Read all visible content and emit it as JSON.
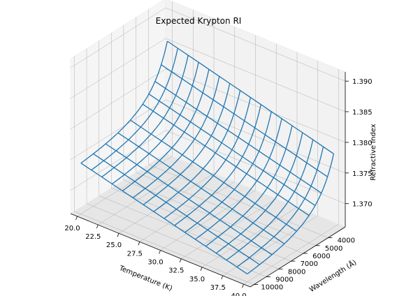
{
  "chart_data": {
    "type": "wireframe-3d",
    "title": "Expected Krypton RI",
    "xlabel": "Temperature (K)",
    "ylabel": "Wavelength (Å)",
    "zlabel": "Refractive Index",
    "x_ticks": [
      "20.0",
      "22.5",
      "25.0",
      "27.5",
      "30.0",
      "32.5",
      "35.0",
      "37.5",
      "40.0"
    ],
    "y_ticks": [
      "4000",
      "5000",
      "6000",
      "7000",
      "8000",
      "9000",
      "10000"
    ],
    "z_ticks": [
      "1.370",
      "1.375",
      "1.380",
      "1.385",
      "1.390"
    ],
    "xlim": [
      19.2,
      40.8
    ],
    "ylim": [
      2600,
      10300
    ],
    "zlim": [
      1.3662,
      1.3915
    ],
    "temperature": [
      20.0,
      21.25,
      22.5,
      23.75,
      25.0,
      26.25,
      27.5,
      28.75,
      30.0,
      31.25,
      32.5,
      33.75,
      35.0,
      36.25,
      37.5,
      38.75,
      40.0
    ],
    "wavelength": [
      3000,
      3500,
      4000,
      4500,
      5000,
      6000,
      7000,
      8000,
      9000,
      10000
    ],
    "surface_model": {
      "n_at_20K_long_wavelength": 1.3745,
      "n_at_40K_long_wavelength": 1.3675,
      "n_at_20K_3000A": 1.3855,
      "n_at_40K_3000A": 1.3782
    },
    "grid": true,
    "legend": "none",
    "series_color": "#1f77b4"
  }
}
